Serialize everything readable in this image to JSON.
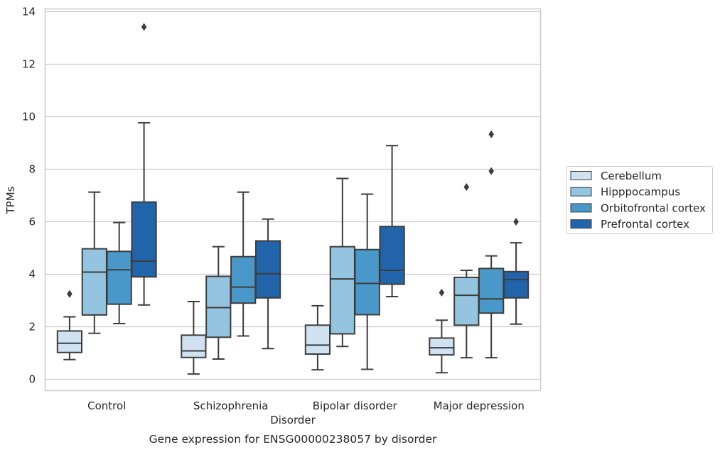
{
  "chart_data": {
    "type": "box",
    "title": "",
    "caption": "Gene expression for ENSG00000238057 by disorder",
    "xlabel": "Disorder",
    "ylabel": "TPMs",
    "ylim": [
      -0.4,
      14.1
    ],
    "yticks": [
      0,
      2,
      4,
      6,
      8,
      10,
      12,
      14
    ],
    "grid": "horizontal",
    "legend_position": "right",
    "categories": [
      "Control",
      "Schizophrenia",
      "Bipolar disorder",
      "Major depression"
    ],
    "series": [
      {
        "name": "Cerebellum",
        "color": "#d0e1f2",
        "boxes": [
          {
            "min": 0.75,
            "q1": 1.02,
            "median": 1.37,
            "q3": 1.84,
            "max": 2.38,
            "outliers": [
              3.25
            ]
          },
          {
            "min": 0.2,
            "q1": 0.83,
            "median": 1.08,
            "q3": 1.68,
            "max": 2.96,
            "outliers": []
          },
          {
            "min": 0.36,
            "q1": 0.96,
            "median": 1.3,
            "q3": 2.06,
            "max": 2.8,
            "outliers": []
          },
          {
            "min": 0.25,
            "q1": 0.93,
            "median": 1.2,
            "q3": 1.57,
            "max": 2.25,
            "outliers": [
              3.3
            ]
          }
        ]
      },
      {
        "name": "Hipppocampus",
        "color": "#94c4df",
        "boxes": [
          {
            "min": 1.75,
            "q1": 2.45,
            "median": 4.08,
            "q3": 4.97,
            "max": 7.13,
            "outliers": []
          },
          {
            "min": 0.77,
            "q1": 1.6,
            "median": 2.73,
            "q3": 3.92,
            "max": 5.05,
            "outliers": []
          },
          {
            "min": 1.25,
            "q1": 1.73,
            "median": 3.82,
            "q3": 5.05,
            "max": 7.65,
            "outliers": []
          },
          {
            "min": 0.82,
            "q1": 2.06,
            "median": 3.2,
            "q3": 3.88,
            "max": 4.15,
            "outliers": [
              7.32
            ]
          }
        ]
      },
      {
        "name": "Orbitofrontal cortex",
        "color": "#4a98c9",
        "boxes": [
          {
            "min": 2.12,
            "q1": 2.86,
            "median": 4.17,
            "q3": 4.87,
            "max": 5.97,
            "outliers": []
          },
          {
            "min": 1.65,
            "q1": 2.9,
            "median": 3.51,
            "q3": 4.67,
            "max": 7.13,
            "outliers": []
          },
          {
            "min": 0.38,
            "q1": 2.46,
            "median": 3.65,
            "q3": 4.94,
            "max": 7.05,
            "outliers": []
          },
          {
            "min": 0.82,
            "q1": 2.52,
            "median": 3.06,
            "q3": 4.22,
            "max": 4.7,
            "outliers": [
              7.93,
              9.33
            ]
          }
        ]
      },
      {
        "name": "Prefrontal cortex",
        "color": "#2264aa",
        "boxes": [
          {
            "min": 2.83,
            "q1": 3.9,
            "median": 4.5,
            "q3": 6.75,
            "max": 9.77,
            "outliers": [
              13.42
            ]
          },
          {
            "min": 1.17,
            "q1": 3.1,
            "median": 4.02,
            "q3": 5.27,
            "max": 6.1,
            "outliers": []
          },
          {
            "min": 3.15,
            "q1": 3.62,
            "median": 4.15,
            "q3": 5.82,
            "max": 8.9,
            "outliers": []
          },
          {
            "min": 2.1,
            "q1": 3.1,
            "median": 3.8,
            "q3": 4.1,
            "max": 5.2,
            "outliers": [
              6.0
            ]
          }
        ]
      }
    ]
  }
}
